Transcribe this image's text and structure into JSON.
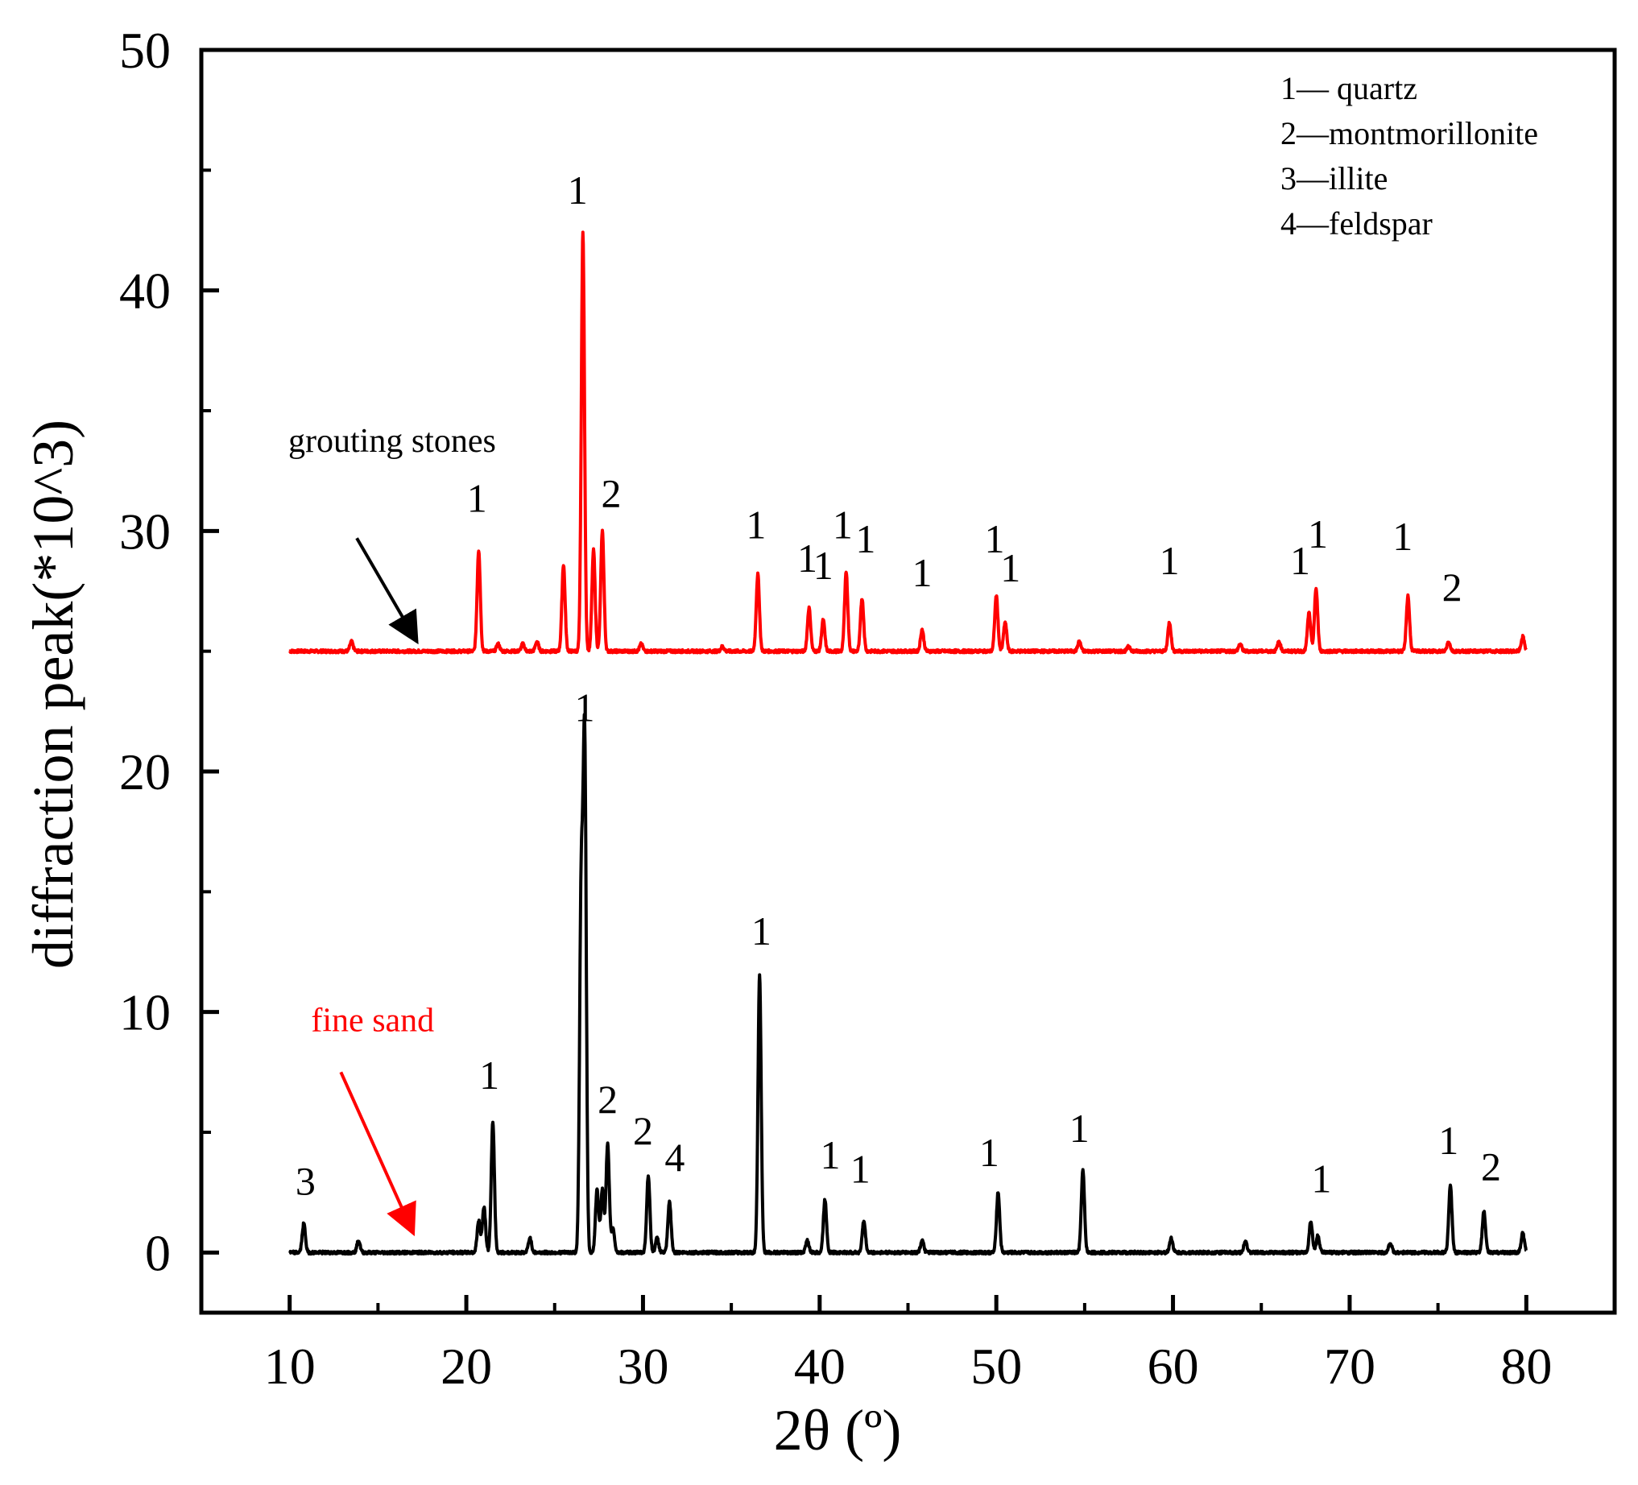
{
  "chart_data": {
    "type": "line",
    "title": "",
    "xlabel": "2θ (º)",
    "ylabel": "diffraction peak(*10^3)",
    "xlim": [
      5,
      85
    ],
    "ylim": [
      -2.5,
      50
    ],
    "xticks": [
      10,
      20,
      30,
      40,
      50,
      60,
      70,
      80
    ],
    "yticks": [
      0,
      10,
      20,
      30,
      40,
      50
    ],
    "xtick_labels": [
      "10",
      "20",
      "30",
      "40",
      "50",
      "60",
      "70",
      "80"
    ],
    "ytick_labels": [
      "0",
      "10",
      "20",
      "30",
      "40",
      "50"
    ],
    "legend": [
      {
        "num": "1",
        "text": "1— quartz"
      },
      {
        "num": "2",
        "text": "2—montmorillonite"
      },
      {
        "num": "3",
        "text": "3—illite"
      },
      {
        "num": "4",
        "text": "4—feldspar"
      }
    ],
    "series": [
      {
        "name": "grouting stones",
        "color": "#ff0000",
        "baseline": 25,
        "x_range": [
          10,
          80
        ],
        "peaks": [
          {
            "x": 13.5,
            "y": 25.4
          },
          {
            "x": 20.7,
            "y": 29.2
          },
          {
            "x": 21.8,
            "y": 25.3
          },
          {
            "x": 23.2,
            "y": 25.3
          },
          {
            "x": 24.0,
            "y": 25.4
          },
          {
            "x": 25.5,
            "y": 28.6
          },
          {
            "x": 26.6,
            "y": 42.4
          },
          {
            "x": 27.2,
            "y": 29.2
          },
          {
            "x": 27.7,
            "y": 30.0
          },
          {
            "x": 29.9,
            "y": 25.3
          },
          {
            "x": 34.5,
            "y": 25.2
          },
          {
            "x": 36.5,
            "y": 28.2
          },
          {
            "x": 39.4,
            "y": 26.8
          },
          {
            "x": 40.2,
            "y": 26.3
          },
          {
            "x": 41.5,
            "y": 28.3
          },
          {
            "x": 42.4,
            "y": 27.2
          },
          {
            "x": 45.8,
            "y": 25.9
          },
          {
            "x": 50.0,
            "y": 27.3
          },
          {
            "x": 50.5,
            "y": 26.2
          },
          {
            "x": 54.7,
            "y": 25.4
          },
          {
            "x": 57.5,
            "y": 25.2
          },
          {
            "x": 59.8,
            "y": 26.2
          },
          {
            "x": 63.8,
            "y": 25.3
          },
          {
            "x": 66.0,
            "y": 25.4
          },
          {
            "x": 67.7,
            "y": 26.6
          },
          {
            "x": 68.1,
            "y": 27.6
          },
          {
            "x": 73.3,
            "y": 27.3
          },
          {
            "x": 75.6,
            "y": 25.4
          },
          {
            "x": 79.8,
            "y": 25.6
          }
        ],
        "peak_labels": [
          {
            "text": "1",
            "x": 20.6,
            "y": 30.8
          },
          {
            "text": "1",
            "x": 26.3,
            "y": 43.6
          },
          {
            "text": "2",
            "x": 28.2,
            "y": 31.0
          },
          {
            "text": "1",
            "x": 36.4,
            "y": 29.7
          },
          {
            "text": "1",
            "x": 39.3,
            "y": 28.3
          },
          {
            "text": "1",
            "x": 40.2,
            "y": 28.0
          },
          {
            "text": "1",
            "x": 41.3,
            "y": 29.7
          },
          {
            "text": "1",
            "x": 42.6,
            "y": 29.1
          },
          {
            "text": "1",
            "x": 45.8,
            "y": 27.7
          },
          {
            "text": "1",
            "x": 49.9,
            "y": 29.1
          },
          {
            "text": "1",
            "x": 50.8,
            "y": 27.9
          },
          {
            "text": "1",
            "x": 59.8,
            "y": 28.2
          },
          {
            "text": "1",
            "x": 67.2,
            "y": 28.2
          },
          {
            "text": "1",
            "x": 68.2,
            "y": 29.3
          },
          {
            "text": "1",
            "x": 73.0,
            "y": 29.2
          },
          {
            "text": "2",
            "x": 75.8,
            "y": 27.1
          }
        ]
      },
      {
        "name": "fine sand",
        "color": "#000000",
        "baseline": 0,
        "x_range": [
          10,
          80
        ],
        "peaks": [
          {
            "x": 10.8,
            "y": 1.2
          },
          {
            "x": 13.9,
            "y": 0.5
          },
          {
            "x": 20.7,
            "y": 1.3
          },
          {
            "x": 21.0,
            "y": 1.9
          },
          {
            "x": 21.5,
            "y": 5.4
          },
          {
            "x": 23.6,
            "y": 0.6
          },
          {
            "x": 26.5,
            "y": 14.7
          },
          {
            "x": 26.7,
            "y": 20.9
          },
          {
            "x": 27.4,
            "y": 2.6
          },
          {
            "x": 27.7,
            "y": 2.6
          },
          {
            "x": 28.0,
            "y": 4.5
          },
          {
            "x": 28.3,
            "y": 1.0
          },
          {
            "x": 30.3,
            "y": 3.2
          },
          {
            "x": 30.8,
            "y": 0.6
          },
          {
            "x": 31.5,
            "y": 2.1
          },
          {
            "x": 36.6,
            "y": 11.5
          },
          {
            "x": 39.3,
            "y": 0.5
          },
          {
            "x": 40.3,
            "y": 2.2
          },
          {
            "x": 42.5,
            "y": 1.3
          },
          {
            "x": 45.8,
            "y": 0.5
          },
          {
            "x": 50.1,
            "y": 2.5
          },
          {
            "x": 54.9,
            "y": 3.4
          },
          {
            "x": 59.9,
            "y": 0.6
          },
          {
            "x": 64.1,
            "y": 0.5
          },
          {
            "x": 67.8,
            "y": 1.3
          },
          {
            "x": 68.2,
            "y": 0.7
          },
          {
            "x": 72.3,
            "y": 0.4
          },
          {
            "x": 75.7,
            "y": 2.8
          },
          {
            "x": 77.6,
            "y": 1.7
          },
          {
            "x": 79.8,
            "y": 0.8
          }
        ],
        "peak_labels": [
          {
            "text": "3",
            "x": 10.9,
            "y": 2.4
          },
          {
            "text": "1",
            "x": 21.3,
            "y": 6.8
          },
          {
            "text": "1",
            "x": 26.7,
            "y": 22.1
          },
          {
            "text": "2",
            "x": 28.0,
            "y": 5.8
          },
          {
            "text": "2",
            "x": 30.0,
            "y": 4.5
          },
          {
            "text": "4",
            "x": 31.8,
            "y": 3.4
          },
          {
            "text": "1",
            "x": 36.7,
            "y": 12.8
          },
          {
            "text": "1",
            "x": 40.6,
            "y": 3.5
          },
          {
            "text": "1",
            "x": 42.3,
            "y": 2.9
          },
          {
            "text": "1",
            "x": 49.6,
            "y": 3.6
          },
          {
            "text": "1",
            "x": 54.7,
            "y": 4.6
          },
          {
            "text": "1",
            "x": 68.4,
            "y": 2.5
          },
          {
            "text": "1",
            "x": 75.6,
            "y": 4.1
          },
          {
            "text": "2",
            "x": 78.0,
            "y": 3.0
          }
        ]
      }
    ],
    "annotations": [
      {
        "text": "grouting stones",
        "color": "#000000",
        "anchor": {
          "x": 15.8,
          "y": 33.3
        },
        "arrow_from": {
          "x": 13.8,
          "y": 29.7
        },
        "arrow_to": {
          "x": 17.2,
          "y": 25.4
        }
      },
      {
        "text": "fine sand",
        "color": "#ff0000",
        "anchor": {
          "x": 14.7,
          "y": 9.2
        },
        "arrow_from": {
          "x": 12.9,
          "y": 7.5
        },
        "arrow_to": {
          "x": 17.0,
          "y": 0.8
        }
      }
    ]
  }
}
